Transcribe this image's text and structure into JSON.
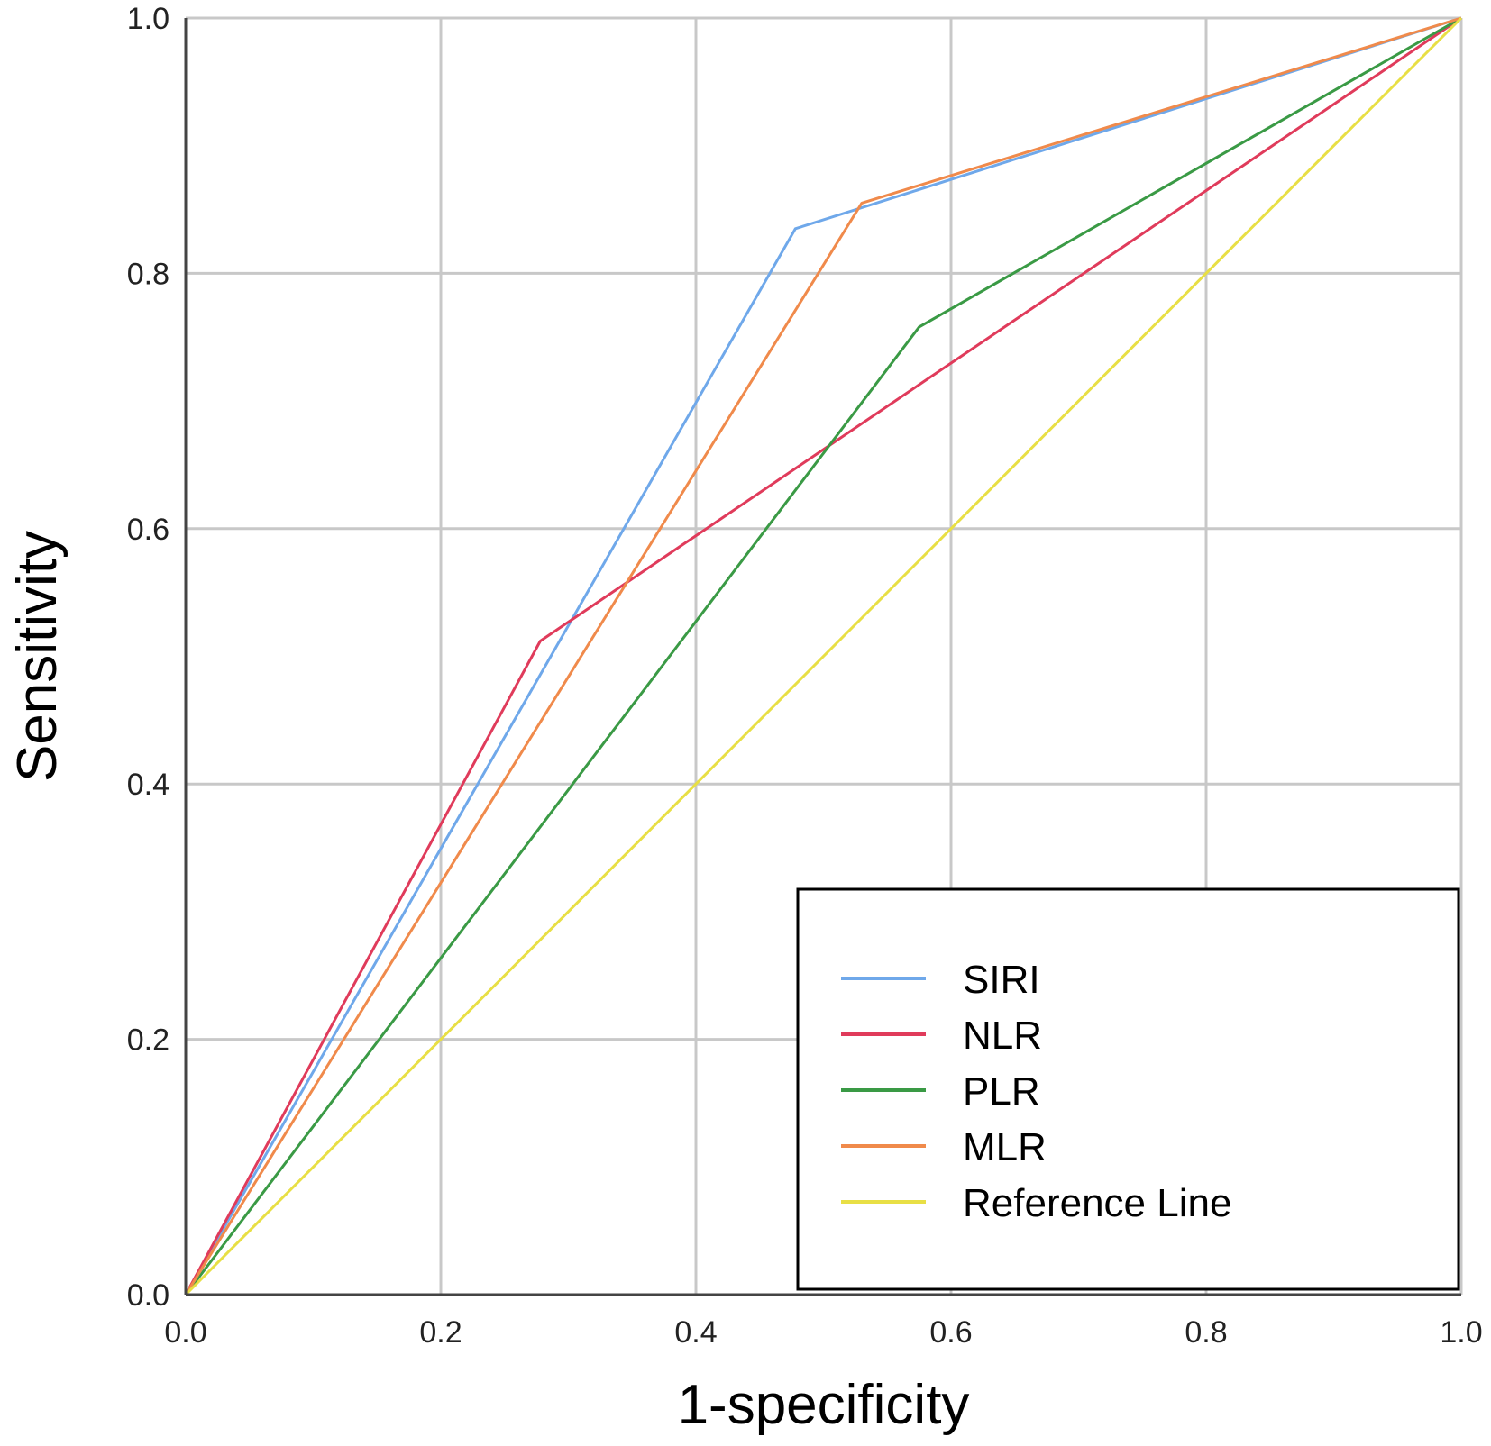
{
  "chart_data": {
    "type": "line",
    "title": "",
    "xlabel": "1-specificity",
    "ylabel": "Sensitivity",
    "xlim": [
      0,
      1
    ],
    "ylim": [
      0,
      1
    ],
    "x_ticks": [
      "0.0",
      "0.2",
      "0.4",
      "0.6",
      "0.8",
      "1.0"
    ],
    "y_ticks": [
      "0.0",
      "0.2",
      "0.4",
      "0.6",
      "0.8",
      "1.0"
    ],
    "grid": true,
    "legend_position": "bottom-right",
    "series": [
      {
        "name": "SIRI",
        "color": "#6fa8ea",
        "x": [
          0,
          0.478,
          1
        ],
        "y": [
          0,
          0.835,
          1
        ]
      },
      {
        "name": "NLR",
        "color": "#e03b5b",
        "x": [
          0,
          0.278,
          1
        ],
        "y": [
          0,
          0.512,
          1
        ]
      },
      {
        "name": "PLR",
        "color": "#3a9a45",
        "x": [
          0,
          0.575,
          1
        ],
        "y": [
          0,
          0.758,
          1
        ]
      },
      {
        "name": "MLR",
        "color": "#f08a4b",
        "x": [
          0,
          0.53,
          1
        ],
        "y": [
          0,
          0.855,
          1
        ]
      },
      {
        "name": "Reference Line",
        "color": "#e8df45",
        "x": [
          0,
          1
        ],
        "y": [
          0,
          1
        ]
      }
    ]
  }
}
